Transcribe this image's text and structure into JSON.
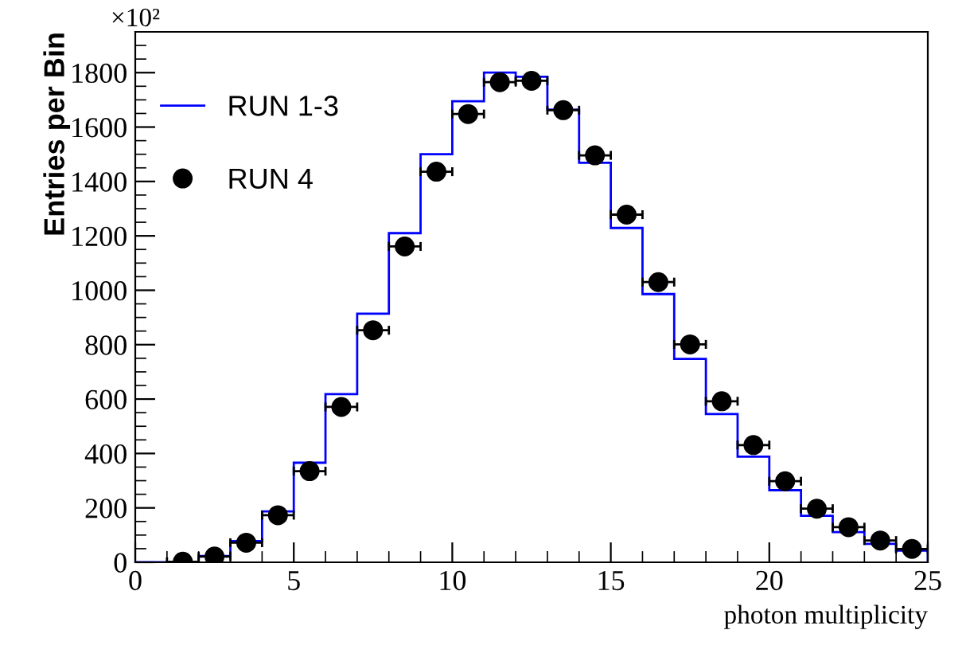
{
  "chart_data": {
    "type": "histogram",
    "xlabel": "photon multiplicity",
    "ylabel": "Entries per Bin",
    "annotations": [
      "×10²"
    ],
    "bins": [
      0,
      1,
      2,
      3,
      4,
      5,
      6,
      7,
      8,
      9,
      10,
      11,
      12,
      13,
      14,
      15,
      16,
      17,
      18,
      19,
      20,
      21,
      22,
      23,
      24,
      25
    ],
    "series": [
      {
        "name": "RUN 1-3",
        "color": "#0000ff",
        "values": [
          0,
          2,
          23,
          78,
          187,
          366,
          618,
          914,
          1210,
          1500,
          1695,
          1800,
          1785,
          1664,
          1469,
          1229,
          986,
          748,
          545,
          388,
          265,
          171,
          111,
          68,
          43
        ]
      },
      {
        "name": "RUN 4",
        "type": "scatter",
        "color": "#000000",
        "marker": "circle",
        "x": [
          1.5,
          2.5,
          3.5,
          4.5,
          5.5,
          6.5,
          7.5,
          8.5,
          9.5,
          10.5,
          11.5,
          12.5,
          13.5,
          14.5,
          15.5,
          16.5,
          17.5,
          18.5,
          19.5,
          20.5,
          21.5,
          22.5,
          23.5,
          24.5
        ],
        "values": [
          2,
          21,
          72,
          173,
          335,
          571,
          853,
          1161,
          1436,
          1648,
          1765,
          1770,
          1662,
          1496,
          1278,
          1030,
          801,
          592,
          431,
          298,
          197,
          129,
          80,
          49
        ],
        "xerrors": [
          0.5,
          0.5,
          0.5,
          0.5,
          0.5,
          0.5,
          0.5,
          0.5,
          0.5,
          0.5,
          0.5,
          0.5,
          0.5,
          0.5,
          0.5,
          0.5,
          0.5,
          0.5,
          0.5,
          0.5,
          0.5,
          0.5,
          0.5,
          0.5
        ]
      }
    ],
    "xlim": [
      0,
      25
    ],
    "ylim": [
      0,
      1950
    ],
    "xticks": [
      0,
      5,
      10,
      15,
      20,
      25
    ],
    "yticks": [
      0,
      200,
      400,
      600,
      800,
      1000,
      1200,
      1400,
      1600,
      1800
    ],
    "grid": false,
    "legend": "top left"
  }
}
